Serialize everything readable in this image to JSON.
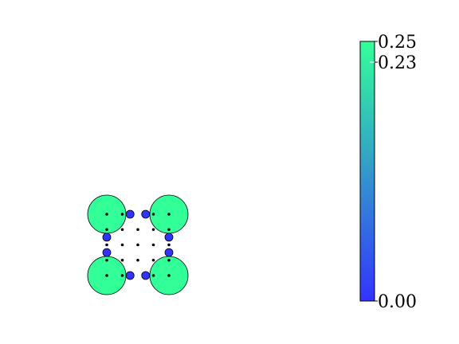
{
  "chart_data": {
    "type": "scatter",
    "title": "",
    "xlabel": "",
    "ylabel": "",
    "grid": false,
    "axes_visible": false,
    "xlim": [
      -1.1,
      5.1
    ],
    "ylim": [
      -1.1,
      5.1
    ],
    "series": [
      {
        "marker": "large-circle",
        "value": 0.25,
        "points": [
          [
            0,
            4
          ],
          [
            4,
            4
          ],
          [
            0,
            0
          ],
          [
            4,
            0
          ]
        ]
      },
      {
        "marker": "medium-circle",
        "value": 0.0,
        "points": [
          [
            1.5,
            4
          ],
          [
            2.5,
            4
          ],
          [
            0,
            2.5
          ],
          [
            4,
            2.5
          ],
          [
            0,
            1.5
          ],
          [
            4,
            1.5
          ],
          [
            1.5,
            0
          ],
          [
            2.5,
            0
          ]
        ]
      },
      {
        "marker": "small-dot",
        "value": null,
        "points": [
          [
            0,
            4
          ],
          [
            1,
            4
          ],
          [
            3,
            4
          ],
          [
            4,
            4
          ],
          [
            0,
            3
          ],
          [
            1,
            3
          ],
          [
            2,
            3
          ],
          [
            3,
            3
          ],
          [
            4,
            3
          ],
          [
            0,
            2
          ],
          [
            1,
            2
          ],
          [
            2,
            2
          ],
          [
            3,
            2
          ],
          [
            4,
            2
          ],
          [
            0,
            1
          ],
          [
            1,
            1
          ],
          [
            2,
            1
          ],
          [
            3,
            1
          ],
          [
            4,
            1
          ],
          [
            0,
            0
          ],
          [
            1,
            0
          ],
          [
            3,
            0
          ],
          [
            4,
            0
          ]
        ]
      }
    ],
    "colorbar": {
      "min": 0.0,
      "max": 0.25,
      "ticks": [
        {
          "value": 0.0,
          "label": "0.00"
        },
        {
          "value": 0.23,
          "label": "0.23"
        },
        {
          "value": 0.25,
          "label": "0.25"
        }
      ],
      "color_low": "#3333ff",
      "color_high": "#33ff99"
    }
  }
}
